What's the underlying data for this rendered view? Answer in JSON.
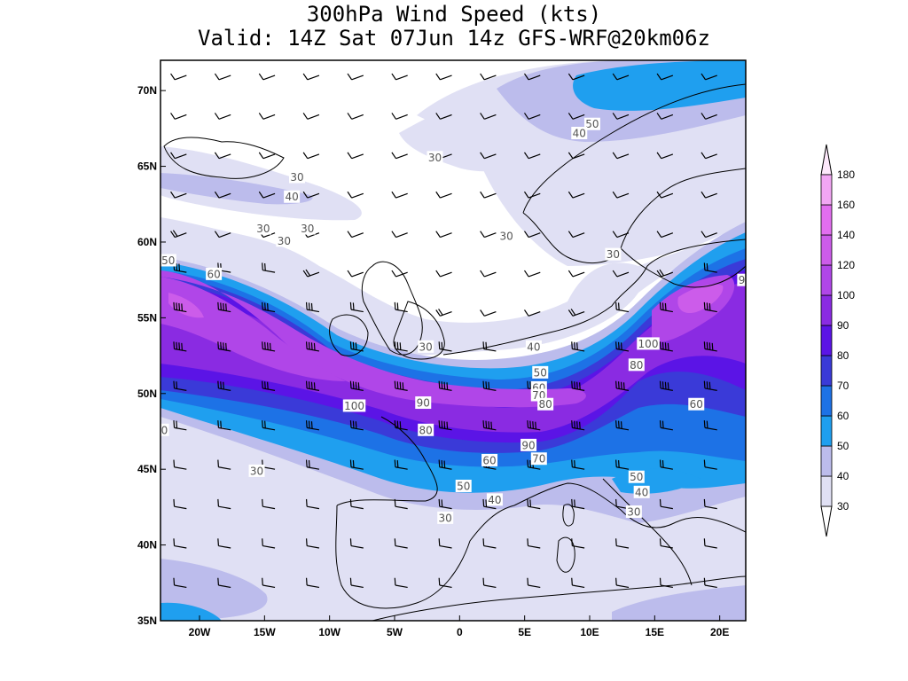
{
  "title": {
    "line1": "300hPa Wind Speed (kts)",
    "line2": "Valid: 14Z Sat 07Jun 14z GFS-WRF@20km06z"
  },
  "map": {
    "lon_range": [
      -23,
      22
    ],
    "lat_range": [
      35,
      72
    ],
    "lon_ticks": [
      {
        "lon": -20,
        "label": "20W"
      },
      {
        "lon": -15,
        "label": "15W"
      },
      {
        "lon": -10,
        "label": "10W"
      },
      {
        "lon": -5,
        "label": "5W"
      },
      {
        "lon": 0,
        "label": "0"
      },
      {
        "lon": 5,
        "label": "5E"
      },
      {
        "lon": 10,
        "label": "10E"
      },
      {
        "lon": 15,
        "label": "15E"
      },
      {
        "lon": 20,
        "label": "20E"
      }
    ],
    "lat_ticks": [
      {
        "lat": 70,
        "label": "70N"
      },
      {
        "lat": 65,
        "label": "65N"
      },
      {
        "lat": 60,
        "label": "60N"
      },
      {
        "lat": 55,
        "label": "55N"
      },
      {
        "lat": 50,
        "label": "50N"
      },
      {
        "lat": 45,
        "label": "45N"
      },
      {
        "lat": 40,
        "label": "40N"
      },
      {
        "lat": 35,
        "label": "35N"
      }
    ]
  },
  "colorbar": {
    "levels": [
      "30",
      "40",
      "50",
      "60",
      "70",
      "80",
      "90",
      "100",
      "120",
      "140",
      "160",
      "180"
    ],
    "colors": [
      "#e0e0f4",
      "#bcbcec",
      "#1f9fef",
      "#1d72e6",
      "#3a3ad8",
      "#5b14e6",
      "#8a2be2",
      "#b046e8",
      "#cc5cea",
      "#e26ef0",
      "#f2a6f4"
    ]
  },
  "contour_labels": [
    {
      "text": "50",
      "lon": 10.2,
      "lat": 67.8
    },
    {
      "text": "40",
      "lon": 9.2,
      "lat": 67.2
    },
    {
      "text": "30",
      "lon": -1.9,
      "lat": 65.6
    },
    {
      "text": "30",
      "lon": -12.5,
      "lat": 64.3
    },
    {
      "text": "40",
      "lon": -12.9,
      "lat": 63.0
    },
    {
      "text": "30",
      "lon": -15.1,
      "lat": 60.9
    },
    {
      "text": "30",
      "lon": -13.5,
      "lat": 60.1
    },
    {
      "text": "30",
      "lon": -11.7,
      "lat": 60.9
    },
    {
      "text": "30",
      "lon": 3.6,
      "lat": 60.4
    },
    {
      "text": "30",
      "lon": 11.8,
      "lat": 59.2
    },
    {
      "text": "50",
      "lon": -22.4,
      "lat": 58.8
    },
    {
      "text": "60",
      "lon": -18.9,
      "lat": 57.9
    },
    {
      "text": "30",
      "lon": -2.6,
      "lat": 53.1
    },
    {
      "text": "40",
      "lon": 5.7,
      "lat": 53.1
    },
    {
      "text": "50",
      "lon": 6.2,
      "lat": 51.4
    },
    {
      "text": "60",
      "lon": 6.1,
      "lat": 50.4
    },
    {
      "text": "70",
      "lon": 6.1,
      "lat": 49.9
    },
    {
      "text": "80",
      "lon": 6.6,
      "lat": 49.3
    },
    {
      "text": "90",
      "lon": -2.8,
      "lat": 49.4
    },
    {
      "text": "100",
      "lon": -8.1,
      "lat": 49.2
    },
    {
      "text": "80",
      "lon": -2.6,
      "lat": 47.6
    },
    {
      "text": "90",
      "lon": 5.3,
      "lat": 46.6
    },
    {
      "text": "70",
      "lon": 6.1,
      "lat": 45.7
    },
    {
      "text": "60",
      "lon": 2.3,
      "lat": 45.6
    },
    {
      "text": "50",
      "lon": 0.3,
      "lat": 43.9
    },
    {
      "text": "40",
      "lon": 2.7,
      "lat": 43.0
    },
    {
      "text": "30",
      "lon": -1.1,
      "lat": 41.8
    },
    {
      "text": "100",
      "lon": 14.5,
      "lat": 53.3
    },
    {
      "text": "80",
      "lon": 13.6,
      "lat": 51.9
    },
    {
      "text": "60",
      "lon": 18.2,
      "lat": 49.3
    },
    {
      "text": "50",
      "lon": 13.6,
      "lat": 44.5
    },
    {
      "text": "40",
      "lon": 14.0,
      "lat": 43.5
    },
    {
      "text": "30",
      "lon": 13.4,
      "lat": 42.2
    },
    {
      "text": "30",
      "lon": -15.6,
      "lat": 44.9
    },
    {
      "text": "9",
      "lon": 21.7,
      "lat": 57.5
    },
    {
      "text": "0",
      "lon": -22.7,
      "lat": 47.6
    }
  ]
}
